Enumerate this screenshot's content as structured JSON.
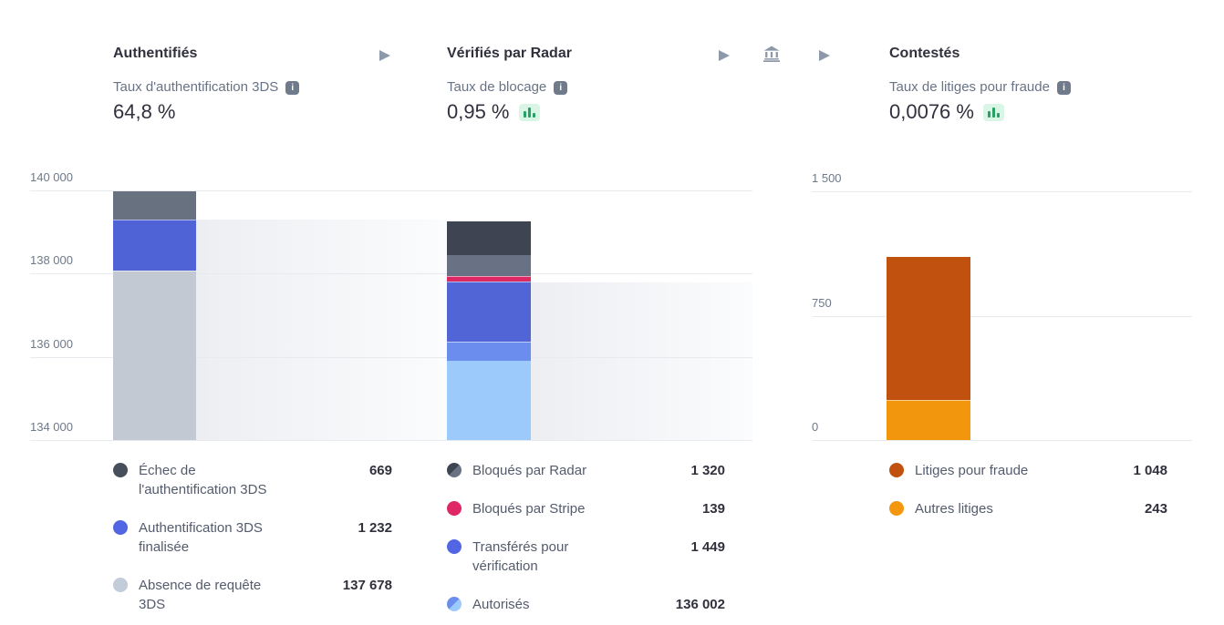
{
  "header": {
    "stages": [
      {
        "title": "Authentifiés",
        "metric_label": "Taux d'authentification 3DS",
        "metric_value": "64,8 %",
        "trend_badge": false
      },
      {
        "title": "Vérifiés par Radar",
        "metric_label": "Taux de blocage",
        "metric_value": "0,95 %",
        "trend_badge": true
      },
      {
        "title": "Contestés",
        "metric_label": "Taux de litiges pour fraude",
        "metric_value": "0,0076 %",
        "trend_badge": true
      }
    ],
    "icons": [
      "flow-arrow-icon",
      "bank-icon",
      "info-icon",
      "mini-bar-chart-icon"
    ]
  },
  "colors": {
    "text_dark": "#30313D",
    "text_gray": "#687385",
    "legend_label": "#545B6C",
    "gridline": "#E7EAEF",
    "icon_gray": "#8D98A9",
    "badge_bg": "#D8F5E6",
    "badge_bar": "#27A263",
    "band_start": "#ECEEF2",
    "band_end": "#FBFCFD"
  },
  "chart_data": [
    {
      "type": "bar",
      "title": "Authentifiés",
      "ylim": [
        134000,
        140744
      ],
      "yticks": [
        140000,
        138000,
        136000,
        134000
      ],
      "ytick_labels": [
        "140 000",
        "138 000",
        "136 000",
        "134 000"
      ],
      "total": 139579,
      "flow_out_value": 138910,
      "segments": [
        {
          "name": "Échec de l'authentification 3DS",
          "value": 669,
          "display_value": "669",
          "bar_colors": [
            "#68717F"
          ],
          "dot_colors": [
            "#474E5C"
          ]
        },
        {
          "name": "Authentification 3DS finalisée",
          "value": 1232,
          "display_value": "1 232",
          "bar_colors": [
            "#4F63D6"
          ],
          "dot_colors": [
            "#5266E3"
          ]
        },
        {
          "name": "Absence de requête 3DS",
          "value": 137678,
          "display_value": "137 678",
          "bar_colors": [
            "#C2C9D3"
          ],
          "dot_colors": [
            "#C3CCD9"
          ]
        }
      ]
    },
    {
      "type": "bar",
      "title": "Vérifiés par Radar",
      "ylim": [
        134000,
        140744
      ],
      "yticks": [
        140000,
        138000,
        136000,
        134000
      ],
      "ytick_labels": [
        "140 000",
        "138 000",
        "136 000",
        "134 000"
      ],
      "total": 138910,
      "flow_out_value": 137451,
      "segments": [
        {
          "name": "Bloqués par Radar",
          "value": 1320,
          "display_value": "1 320",
          "bar_colors": [
            "#3E4452",
            "#697284"
          ],
          "split": 0.62,
          "dot_colors": [
            "#3E4452",
            "#697284"
          ]
        },
        {
          "name": "Bloqués par Stripe",
          "value": 139,
          "display_value": "139",
          "bar_colors": [
            "#DC2963"
          ],
          "dot_colors": [
            "#DF2767"
          ]
        },
        {
          "name": "Transférés pour vérification",
          "value": 1449,
          "display_value": "1 449",
          "bar_colors": [
            "#5165D6"
          ],
          "dot_colors": [
            "#5266E3"
          ]
        },
        {
          "name": "Autorisés",
          "value": 136002,
          "display_value": "136 002",
          "bar_colors": [
            "#6B8DEE",
            "#9CCAFA"
          ],
          "split": 0.195,
          "dot_colors": [
            "#6B8DEE",
            "#9CCAFA"
          ]
        }
      ]
    },
    {
      "type": "bar",
      "title": "Contestés",
      "ylim": [
        0,
        1683
      ],
      "yticks": [
        1500,
        750,
        0
      ],
      "ytick_labels": [
        "1 500",
        "750",
        "0"
      ],
      "total": 1291,
      "segments": [
        {
          "name": "Litiges pour fraude",
          "value": 1048,
          "display_value": "1 048",
          "bar_colors": [
            "#C1510E"
          ],
          "dot_colors": [
            "#C1510E"
          ]
        },
        {
          "name": "Autres litiges",
          "value": 243,
          "display_value": "243",
          "bar_colors": [
            "#F2960D"
          ],
          "dot_colors": [
            "#F2970E"
          ]
        }
      ]
    }
  ]
}
